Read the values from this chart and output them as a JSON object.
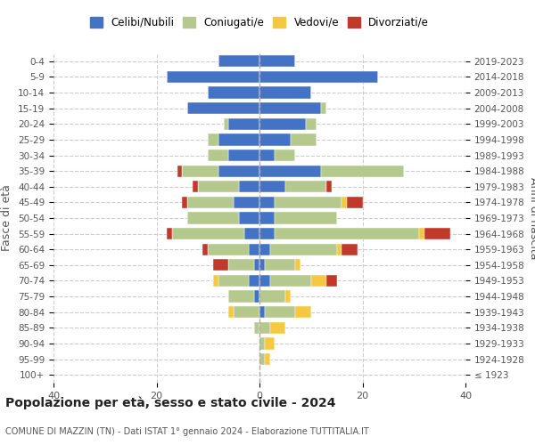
{
  "age_groups": [
    "100+",
    "95-99",
    "90-94",
    "85-89",
    "80-84",
    "75-79",
    "70-74",
    "65-69",
    "60-64",
    "55-59",
    "50-54",
    "45-49",
    "40-44",
    "35-39",
    "30-34",
    "25-29",
    "20-24",
    "15-19",
    "10-14",
    "5-9",
    "0-4"
  ],
  "birth_years": [
    "≤ 1923",
    "1924-1928",
    "1929-1933",
    "1934-1938",
    "1939-1943",
    "1944-1948",
    "1949-1953",
    "1954-1958",
    "1959-1963",
    "1964-1968",
    "1969-1973",
    "1974-1978",
    "1979-1983",
    "1984-1988",
    "1989-1993",
    "1994-1998",
    "1999-2003",
    "2004-2008",
    "2009-2013",
    "2014-2018",
    "2019-2023"
  ],
  "colors": {
    "celibi": "#4472c4",
    "coniugati": "#b5c98e",
    "vedovi": "#f5c842",
    "divorziati": "#c0392b"
  },
  "maschi": {
    "celibi": [
      0,
      0,
      0,
      0,
      0,
      1,
      2,
      1,
      2,
      3,
      4,
      5,
      4,
      8,
      6,
      8,
      6,
      14,
      10,
      18,
      8
    ],
    "coniugati": [
      0,
      0,
      0,
      1,
      5,
      5,
      6,
      5,
      8,
      14,
      10,
      9,
      8,
      7,
      4,
      2,
      1,
      0,
      0,
      0,
      0
    ],
    "vedovi": [
      0,
      0,
      0,
      0,
      1,
      0,
      1,
      0,
      0,
      0,
      0,
      0,
      0,
      0,
      0,
      0,
      0,
      0,
      0,
      0,
      0
    ],
    "divorziati": [
      0,
      0,
      0,
      0,
      0,
      0,
      0,
      3,
      1,
      1,
      0,
      1,
      1,
      1,
      0,
      0,
      0,
      0,
      0,
      0,
      0
    ]
  },
  "femmine": {
    "celibi": [
      0,
      0,
      0,
      0,
      1,
      0,
      2,
      1,
      2,
      3,
      3,
      3,
      5,
      12,
      3,
      6,
      9,
      12,
      10,
      23,
      7
    ],
    "coniugati": [
      0,
      1,
      1,
      2,
      6,
      5,
      8,
      6,
      13,
      28,
      12,
      13,
      8,
      16,
      4,
      5,
      2,
      1,
      0,
      0,
      0
    ],
    "vedovi": [
      0,
      1,
      2,
      3,
      3,
      1,
      3,
      1,
      1,
      1,
      0,
      1,
      0,
      0,
      0,
      0,
      0,
      0,
      0,
      0,
      0
    ],
    "divorziati": [
      0,
      0,
      0,
      0,
      0,
      0,
      2,
      0,
      3,
      5,
      0,
      3,
      1,
      0,
      0,
      0,
      0,
      0,
      0,
      0,
      0
    ]
  },
  "xlim": 40,
  "title": "Popolazione per età, sesso e stato civile - 2024",
  "subtitle": "COMUNE DI MAZZIN (TN) - Dati ISTAT 1° gennaio 2024 - Elaborazione TUTTITALIA.IT",
  "ylabel": "Fasce di età",
  "ylabel_right": "Anni di nascita",
  "legend_labels": [
    "Celibi/Nubili",
    "Coniugati/e",
    "Vedovi/e",
    "Divorziati/e"
  ]
}
